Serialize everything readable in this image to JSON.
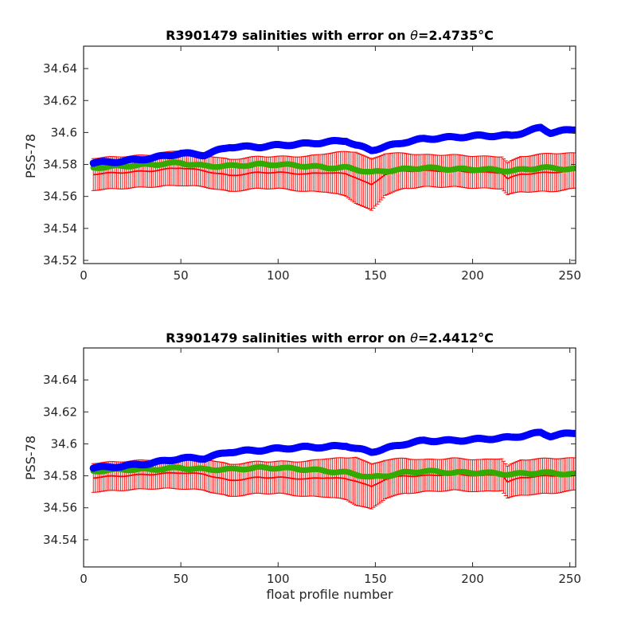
{
  "colors": {
    "blue_markers": "#0000ff",
    "red_error": "#ff0000",
    "green_markers": "#33aa00",
    "axes": "#262626"
  },
  "chart_data": [
    {
      "type": "line",
      "title": "R3901479 salinities with error on θ=2.4735°C",
      "title_parts": {
        "prefix": "R3901479 salinities with error on ",
        "symbol": "θ",
        "value": "=2.4735",
        "unit": "°C"
      },
      "xlabel": "",
      "ylabel": "PSS-78",
      "xlim": [
        0,
        253
      ],
      "ylim": [
        34.518,
        34.654
      ],
      "xticks": [
        0,
        50,
        100,
        150,
        200,
        250
      ],
      "yticks": [
        34.52,
        34.54,
        34.56,
        34.58,
        34.6,
        34.62,
        34.64
      ],
      "ytick_labels": [
        "34.52",
        "34.54",
        "34.56",
        "34.58",
        "34.6",
        "34.62",
        "34.64"
      ],
      "x_range": [
        5,
        253
      ],
      "grid": false,
      "series": [
        {
          "color": "#0000ff",
          "style": "markers",
          "x": [
            5,
            20,
            35,
            50,
            62,
            75,
            90,
            100,
            115,
            125,
            135,
            140,
            148,
            155,
            165,
            175,
            190,
            205,
            220,
            235,
            240,
            253
          ],
          "y": [
            34.581,
            34.582,
            34.584,
            34.587,
            34.586,
            34.591,
            34.591,
            34.592,
            34.593,
            34.594,
            34.595,
            34.592,
            34.589,
            34.591,
            34.594,
            34.596,
            34.597,
            34.598,
            34.598,
            34.603,
            34.6,
            34.602
          ]
        },
        {
          "color": "#ff0000",
          "style": "line-with-errorbars",
          "x": [
            5,
            20,
            35,
            50,
            62,
            75,
            90,
            100,
            115,
            125,
            135,
            140,
            148,
            155,
            165,
            175,
            190,
            205,
            215,
            218,
            225,
            240,
            253
          ],
          "y": [
            34.574,
            34.575,
            34.576,
            34.578,
            34.576,
            34.573,
            34.575,
            34.575,
            34.574,
            34.575,
            34.574,
            34.572,
            34.567,
            34.574,
            34.576,
            34.576,
            34.576,
            34.575,
            34.575,
            34.571,
            34.574,
            34.575,
            34.576
          ],
          "err": [
            0.01,
            0.01,
            0.01,
            0.011,
            0.01,
            0.01,
            0.01,
            0.01,
            0.011,
            0.012,
            0.014,
            0.016,
            0.016,
            0.013,
            0.011,
            0.01,
            0.01,
            0.01,
            0.01,
            0.01,
            0.011,
            0.012,
            0.011
          ]
        },
        {
          "color": "#33aa00",
          "style": "markers",
          "x": [
            5,
            20,
            35,
            50,
            62,
            75,
            90,
            100,
            115,
            125,
            135,
            140,
            148,
            155,
            165,
            175,
            190,
            205,
            220,
            235,
            253
          ],
          "y": [
            34.578,
            34.579,
            34.58,
            34.581,
            34.579,
            34.579,
            34.58,
            34.58,
            34.579,
            34.578,
            34.578,
            34.577,
            34.575,
            34.576,
            34.577,
            34.578,
            34.577,
            34.577,
            34.576,
            34.578,
            34.577
          ]
        }
      ]
    },
    {
      "type": "line",
      "title": "R3901479 salinities with error on θ=2.4412°C",
      "title_parts": {
        "prefix": "R3901479 salinities with error on ",
        "symbol": "θ",
        "value": "=2.4412",
        "unit": "°C"
      },
      "xlabel": "float profile number",
      "ylabel": "PSS-78",
      "xlim": [
        0,
        253
      ],
      "ylim": [
        34.523,
        34.66
      ],
      "xticks": [
        0,
        50,
        100,
        150,
        200,
        250
      ],
      "yticks": [
        34.54,
        34.56,
        34.58,
        34.6,
        34.62,
        34.64
      ],
      "ytick_labels": [
        "34.54",
        "34.56",
        "34.58",
        "34.6",
        "34.62",
        "34.64"
      ],
      "x_range": [
        5,
        253
      ],
      "grid": false,
      "series": [
        {
          "color": "#0000ff",
          "style": "markers",
          "x": [
            5,
            20,
            35,
            50,
            62,
            75,
            90,
            100,
            115,
            125,
            135,
            140,
            148,
            155,
            165,
            175,
            190,
            205,
            220,
            235,
            240,
            253
          ],
          "y": [
            34.585,
            34.586,
            34.588,
            34.591,
            34.591,
            34.595,
            34.596,
            34.597,
            34.598,
            34.598,
            34.599,
            34.597,
            34.595,
            34.597,
            34.6,
            34.602,
            34.602,
            34.603,
            34.604,
            34.607,
            34.605,
            34.607
          ]
        },
        {
          "color": "#ff0000",
          "style": "line-with-errorbars",
          "x": [
            5,
            20,
            35,
            50,
            62,
            75,
            90,
            100,
            115,
            125,
            135,
            140,
            148,
            155,
            165,
            175,
            190,
            205,
            215,
            218,
            225,
            240,
            253
          ],
          "y": [
            34.579,
            34.58,
            34.581,
            34.582,
            34.581,
            34.577,
            34.579,
            34.579,
            34.578,
            34.579,
            34.578,
            34.577,
            34.573,
            34.578,
            34.58,
            34.58,
            34.581,
            34.58,
            34.581,
            34.576,
            34.579,
            34.58,
            34.581
          ],
          "err": [
            0.009,
            0.009,
            0.009,
            0.01,
            0.01,
            0.01,
            0.01,
            0.01,
            0.011,
            0.012,
            0.013,
            0.015,
            0.014,
            0.012,
            0.011,
            0.01,
            0.01,
            0.01,
            0.01,
            0.01,
            0.011,
            0.011,
            0.01
          ]
        },
        {
          "color": "#33aa00",
          "style": "markers",
          "x": [
            5,
            20,
            35,
            50,
            62,
            75,
            90,
            100,
            115,
            125,
            135,
            140,
            148,
            155,
            165,
            175,
            190,
            205,
            220,
            235,
            253
          ],
          "y": [
            34.583,
            34.584,
            34.584,
            34.585,
            34.584,
            34.584,
            34.585,
            34.585,
            34.584,
            34.583,
            34.582,
            34.581,
            34.579,
            34.58,
            34.582,
            34.583,
            34.582,
            34.582,
            34.581,
            34.582,
            34.581
          ]
        }
      ]
    }
  ]
}
